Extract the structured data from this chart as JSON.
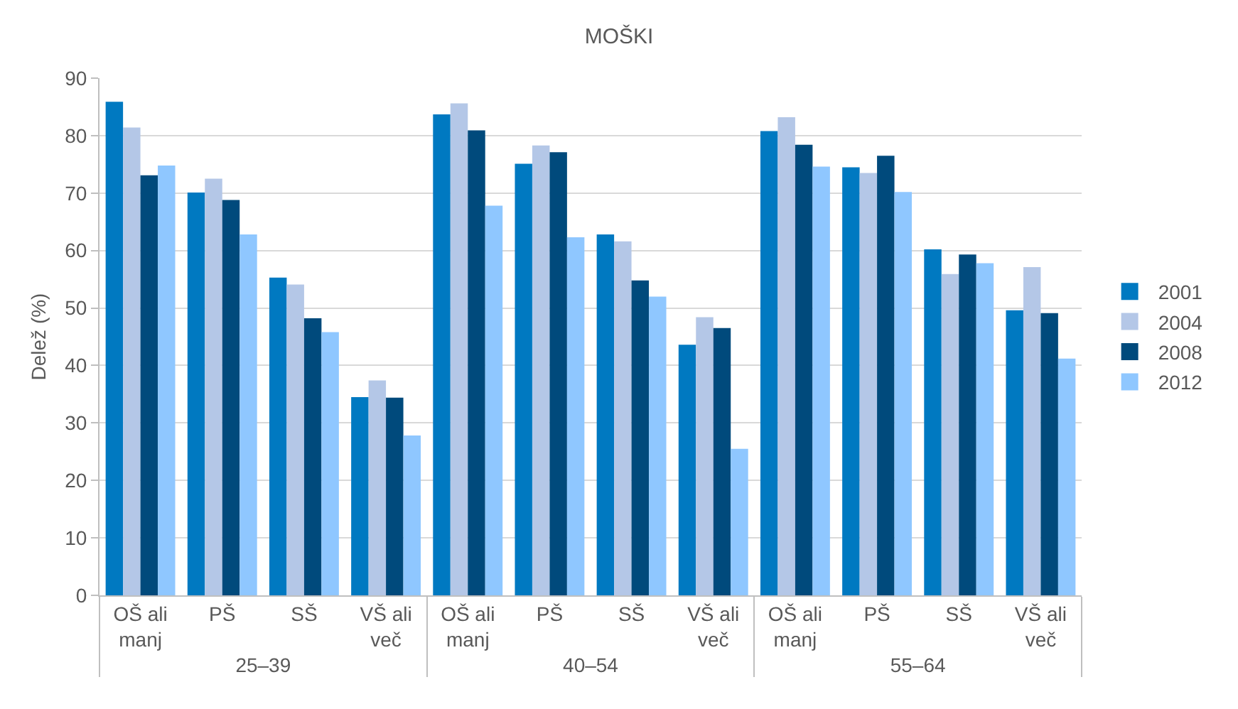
{
  "chart_data": {
    "type": "bar",
    "title": "MOŠKI",
    "ylabel": "Delež (%)",
    "categories": [
      "OŠ ali manj",
      "PŠ",
      "SŠ",
      "VŠ ali več",
      "OŠ ali manj",
      "PŠ",
      "SŠ",
      "VŠ ali več",
      "OŠ ali manj",
      "PŠ",
      "SŠ",
      "VŠ ali več"
    ],
    "annotations": [
      "25–39",
      "40–54",
      "55–64"
    ],
    "series": [
      {
        "name": "2001",
        "color": "#0079c1",
        "values": [
          85.9,
          70.1,
          55.3,
          34.5,
          83.7,
          75.1,
          62.8,
          43.6,
          80.8,
          74.5,
          60.2,
          49.6
        ]
      },
      {
        "name": "2004",
        "color": "#b4c7e7",
        "values": [
          81.4,
          72.5,
          54.1,
          37.4,
          85.6,
          78.3,
          61.6,
          48.4,
          83.2,
          73.5,
          55.9,
          57.1
        ]
      },
      {
        "name": "2008",
        "color": "#004a7c",
        "values": [
          73.1,
          68.8,
          48.2,
          34.4,
          80.9,
          77.1,
          54.8,
          46.5,
          78.4,
          76.5,
          59.3,
          49.1
        ]
      },
      {
        "name": "2012",
        "color": "#8fc7ff",
        "values": [
          74.8,
          62.8,
          45.8,
          27.8,
          67.8,
          62.3,
          52.0,
          25.5,
          74.6,
          70.2,
          57.8,
          41.2
        ]
      }
    ],
    "ylim": [
      0,
      90
    ],
    "yticks": [
      0,
      10,
      20,
      30,
      40,
      50,
      60,
      70,
      80,
      90
    ],
    "grid": "y",
    "legend": "right"
  }
}
